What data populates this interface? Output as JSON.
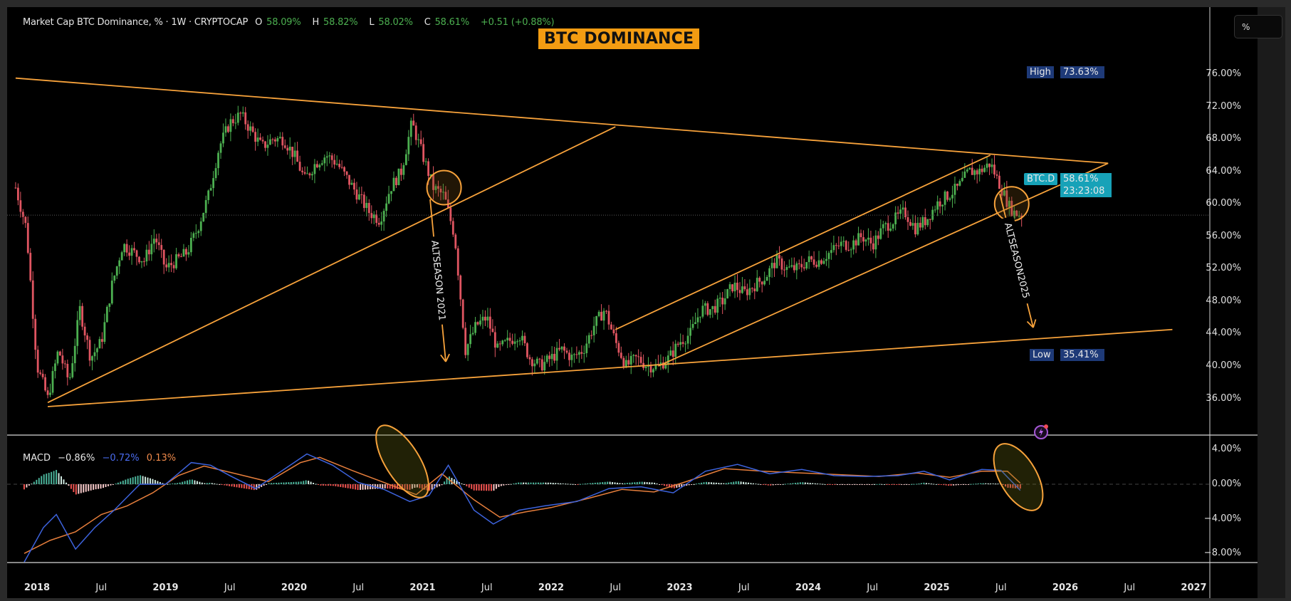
{
  "header": {
    "symbol_title": "Market Cap BTC Dominance, % · 1W · CRYPTOCAP",
    "open_label": "O",
    "open": "58.09%",
    "high_label": "H",
    "high": "58.82%",
    "low_label": "L",
    "low": "58.02%",
    "close_label": "C",
    "close": "58.61%",
    "change": "+0.51 (+0.88%)"
  },
  "annotation_title": "BTC DOMINANCE",
  "price_scale": {
    "unit_button": "%",
    "ticks": [
      "76.00%",
      "72.00%",
      "68.00%",
      "64.00%",
      "60.00%",
      "56.00%",
      "52.00%",
      "48.00%",
      "44.00%",
      "40.00%",
      "36.00%"
    ],
    "high_tag": {
      "label": "High",
      "value": "73.63%"
    },
    "low_tag": {
      "label": "Low",
      "value": "35.41%"
    },
    "last_tag": {
      "label": "BTC.D",
      "value": "58.61%",
      "countdown": "23:23:08"
    }
  },
  "macd": {
    "label": "MACD",
    "hist": "−0.86%",
    "macd_line": "−0.72%",
    "signal": "0.13%",
    "ticks": [
      "4.00%",
      "0.00%",
      "−4.00%",
      "−8.00%"
    ]
  },
  "time_axis": [
    "2018",
    "Jul",
    "2019",
    "Jul",
    "2020",
    "Jul",
    "2021",
    "Jul",
    "2022",
    "Jul",
    "2023",
    "Jul",
    "2024",
    "Jul",
    "2025",
    "Jul",
    "2026",
    "Jul",
    "2027"
  ],
  "drawings": {
    "text_2021": "ALTSEASON 2021",
    "text_2025": "ALTSEASON2025"
  },
  "colors": {
    "up": "#4caf50",
    "down": "#e05561",
    "trendline": "#f7a23b",
    "macd_line": "#3d63dd",
    "signal_line": "#e67e3c",
    "hist_up": "#4bb39a",
    "hist_down": "#ef5350",
    "tag_blue": "#1e3a78",
    "tag_teal": "#17a2b8"
  },
  "chart_data": [
    {
      "type": "candlestick",
      "title": "Market Cap BTC Dominance, % · 1W · CRYPTOCAP",
      "timeframe": "1W",
      "xlabel": "",
      "ylabel": "%",
      "ylim": [
        34,
        78
      ],
      "x_ticks": [
        "2018",
        "Jul",
        "2019",
        "Jul",
        "2020",
        "Jul",
        "2021",
        "Jul",
        "2022",
        "Jul",
        "2023",
        "Jul",
        "2024",
        "Jul",
        "2025",
        "Jul",
        "2026",
        "Jul",
        "2027"
      ],
      "y_ticks": [
        76,
        72,
        68,
        64,
        60,
        56,
        52,
        48,
        44,
        40,
        36
      ],
      "ohlc_last": {
        "open": 58.09,
        "high": 58.82,
        "low": 58.02,
        "close": 58.61,
        "change": 0.51,
        "change_pct": 0.88
      },
      "all_time_marks": {
        "high": 73.63,
        "low": 35.41
      },
      "close_path": [
        [
          "2017-11",
          62
        ],
        [
          "2017-12",
          57
        ],
        [
          "2018-01",
          40
        ],
        [
          "2018-02",
          36
        ],
        [
          "2018-03",
          42
        ],
        [
          "2018-04",
          38
        ],
        [
          "2018-05",
          47
        ],
        [
          "2018-06",
          41
        ],
        [
          "2018-07",
          43
        ],
        [
          "2018-08",
          50
        ],
        [
          "2018-09",
          55
        ],
        [
          "2018-10",
          54
        ],
        [
          "2018-11",
          53
        ],
        [
          "2018-12",
          56
        ],
        [
          "2019-01",
          52
        ],
        [
          "2019-02",
          53
        ],
        [
          "2019-03",
          54
        ],
        [
          "2019-04",
          57
        ],
        [
          "2019-05",
          61
        ],
        [
          "2019-06",
          67
        ],
        [
          "2019-07",
          70
        ],
        [
          "2019-08",
          71
        ],
        [
          "2019-09",
          69
        ],
        [
          "2019-10",
          67
        ],
        [
          "2019-11",
          68
        ],
        [
          "2019-12",
          68
        ],
        [
          "2020-01",
          66
        ],
        [
          "2020-02",
          63
        ],
        [
          "2020-03",
          65
        ],
        [
          "2020-04",
          66
        ],
        [
          "2020-05",
          65
        ],
        [
          "2020-06",
          63
        ],
        [
          "2020-07",
          61
        ],
        [
          "2020-08",
          59
        ],
        [
          "2020-09",
          58
        ],
        [
          "2020-10",
          62
        ],
        [
          "2020-11",
          64
        ],
        [
          "2020-12",
          70
        ],
        [
          "2021-01",
          66
        ],
        [
          "2021-02",
          62
        ],
        [
          "2021-03",
          61
        ],
        [
          "2021-04",
          56
        ],
        [
          "2021-05",
          42
        ],
        [
          "2021-06",
          45
        ],
        [
          "2021-07",
          46
        ],
        [
          "2021-08",
          42
        ],
        [
          "2021-09",
          43
        ],
        [
          "2021-10",
          44
        ],
        [
          "2021-11",
          41
        ],
        [
          "2021-12",
          40
        ],
        [
          "2022-01",
          41
        ],
        [
          "2022-02",
          42
        ],
        [
          "2022-03",
          41
        ],
        [
          "2022-04",
          42
        ],
        [
          "2022-05",
          45
        ],
        [
          "2022-06",
          47
        ],
        [
          "2022-07",
          43
        ],
        [
          "2022-08",
          40
        ],
        [
          "2022-09",
          41
        ],
        [
          "2022-10",
          40
        ],
        [
          "2022-11",
          40
        ],
        [
          "2022-12",
          41
        ],
        [
          "2023-01",
          43
        ],
        [
          "2023-02",
          44
        ],
        [
          "2023-03",
          47
        ],
        [
          "2023-04",
          47
        ],
        [
          "2023-05",
          48
        ],
        [
          "2023-06",
          50
        ],
        [
          "2023-07",
          49
        ],
        [
          "2023-08",
          50
        ],
        [
          "2023-09",
          51
        ],
        [
          "2023-10",
          53
        ],
        [
          "2023-11",
          52
        ],
        [
          "2023-12",
          52
        ],
        [
          "2024-01",
          53
        ],
        [
          "2024-02",
          53
        ],
        [
          "2024-03",
          54
        ],
        [
          "2024-04",
          55
        ],
        [
          "2024-05",
          55
        ],
        [
          "2024-06",
          56
        ],
        [
          "2024-07",
          55
        ],
        [
          "2024-08",
          57
        ],
        [
          "2024-09",
          58
        ],
        [
          "2024-10",
          59
        ],
        [
          "2024-11",
          57
        ],
        [
          "2024-12",
          58
        ],
        [
          "2025-01",
          60
        ],
        [
          "2025-02",
          61
        ],
        [
          "2025-03",
          62
        ],
        [
          "2025-04",
          64
        ],
        [
          "2025-05",
          64
        ],
        [
          "2025-06",
          65
        ],
        [
          "2025-07",
          62
        ],
        [
          "2025-08",
          59
        ],
        [
          "2025-09",
          58.61
        ]
      ],
      "annotations": [
        {
          "type": "text",
          "text": "BTC DOMINANCE"
        },
        {
          "type": "descending_trendline",
          "from": [
            "2017-11",
            75.5
          ],
          "to": [
            "2026-05",
            65
          ]
        },
        {
          "type": "ascending_trendline",
          "from": [
            "2018-02",
            35.5
          ],
          "to": [
            "2022-07",
            69.5
          ]
        },
        {
          "type": "ascending_support",
          "from": [
            "2018-02",
            35
          ],
          "to": [
            "2026-11",
            44.5
          ]
        },
        {
          "type": "channel_upper",
          "from": [
            "2022-07",
            44.5
          ],
          "to": [
            "2025-06",
            66
          ]
        },
        {
          "type": "channel_lower",
          "from": [
            "2022-11",
            40
          ],
          "to": [
            "2026-05",
            65
          ]
        },
        {
          "type": "circle",
          "at": [
            "2021-03",
            62
          ],
          "note": "breakdown 2021"
        },
        {
          "type": "circle",
          "at": [
            "2025-08",
            60
          ],
          "note": "breakdown 2025"
        },
        {
          "type": "arrow_text",
          "text": "ALTSEASON 2021",
          "from": [
            "2021-03",
            59
          ],
          "to": [
            "2021-04",
            38
          ]
        },
        {
          "type": "arrow_text",
          "text": "ALTSEASON2025",
          "from": [
            "2025-08",
            58
          ],
          "to": [
            "2025-11",
            42.5
          ]
        }
      ]
    },
    {
      "type": "line",
      "title": "MACD",
      "ylim": [
        -9.5,
        5
      ],
      "y_ticks": [
        4,
        0,
        -4,
        -8
      ],
      "last_values": {
        "histogram": -0.86,
        "macd": -0.72,
        "signal": 0.13
      },
      "series": [
        {
          "name": "MACD",
          "color": "#3d63dd",
          "values": [
            [
              2017.9,
              -9
            ],
            [
              2018.05,
              -5
            ],
            [
              2018.15,
              -3.5
            ],
            [
              2018.3,
              -7.5
            ],
            [
              2018.45,
              -5
            ],
            [
              2018.6,
              -3
            ],
            [
              2018.8,
              0
            ],
            [
              2019.0,
              0
            ],
            [
              2019.2,
              2.5
            ],
            [
              2019.35,
              2.2
            ],
            [
              2019.5,
              1
            ],
            [
              2019.7,
              -0.5
            ],
            [
              2019.9,
              1.5
            ],
            [
              2020.1,
              3.5
            ],
            [
              2020.3,
              2.2
            ],
            [
              2020.5,
              0.2
            ],
            [
              2020.7,
              -0.6
            ],
            [
              2020.9,
              -2
            ],
            [
              2021.05,
              -1.3
            ],
            [
              2021.2,
              2.2
            ],
            [
              2021.4,
              -3
            ],
            [
              2021.55,
              -4.6
            ],
            [
              2021.75,
              -3
            ],
            [
              2021.95,
              -2.5
            ],
            [
              2022.2,
              -2
            ],
            [
              2022.45,
              -0.5
            ],
            [
              2022.7,
              -0.3
            ],
            [
              2022.95,
              -1
            ],
            [
              2023.2,
              1.5
            ],
            [
              2023.45,
              2.3
            ],
            [
              2023.7,
              1.2
            ],
            [
              2023.95,
              1.7
            ],
            [
              2024.2,
              1
            ],
            [
              2024.45,
              0.9
            ],
            [
              2024.7,
              1
            ],
            [
              2024.9,
              1.5
            ],
            [
              2025.1,
              0.5
            ],
            [
              2025.35,
              1.7
            ],
            [
              2025.5,
              1.6
            ],
            [
              2025.65,
              -0.72
            ]
          ]
        },
        {
          "name": "Signal",
          "color": "#e67e3c",
          "values": [
            [
              2017.9,
              -8
            ],
            [
              2018.1,
              -6.5
            ],
            [
              2018.3,
              -5.5
            ],
            [
              2018.5,
              -3.5
            ],
            [
              2018.7,
              -2.5
            ],
            [
              2018.9,
              -1
            ],
            [
              2019.1,
              1
            ],
            [
              2019.3,
              2.1
            ],
            [
              2019.55,
              1.2
            ],
            [
              2019.8,
              0.3
            ],
            [
              2020.05,
              2.5
            ],
            [
              2020.2,
              3.1
            ],
            [
              2020.45,
              1.6
            ],
            [
              2020.7,
              0.2
            ],
            [
              2020.95,
              -1.2
            ],
            [
              2021.15,
              1.2
            ],
            [
              2021.4,
              -1.8
            ],
            [
              2021.6,
              -3.8
            ],
            [
              2021.8,
              -3.2
            ],
            [
              2022.0,
              -2.7
            ],
            [
              2022.3,
              -1.6
            ],
            [
              2022.55,
              -0.6
            ],
            [
              2022.8,
              -0.9
            ],
            [
              2023.05,
              0.3
            ],
            [
              2023.35,
              1.8
            ],
            [
              2023.65,
              1.5
            ],
            [
              2023.95,
              1.3
            ],
            [
              2024.25,
              1.1
            ],
            [
              2024.55,
              0.9
            ],
            [
              2024.85,
              1.3
            ],
            [
              2025.1,
              0.8
            ],
            [
              2025.35,
              1.5
            ],
            [
              2025.55,
              1.5
            ],
            [
              2025.65,
              0.13
            ]
          ]
        }
      ],
      "histogram_last": -0.86
    }
  ]
}
